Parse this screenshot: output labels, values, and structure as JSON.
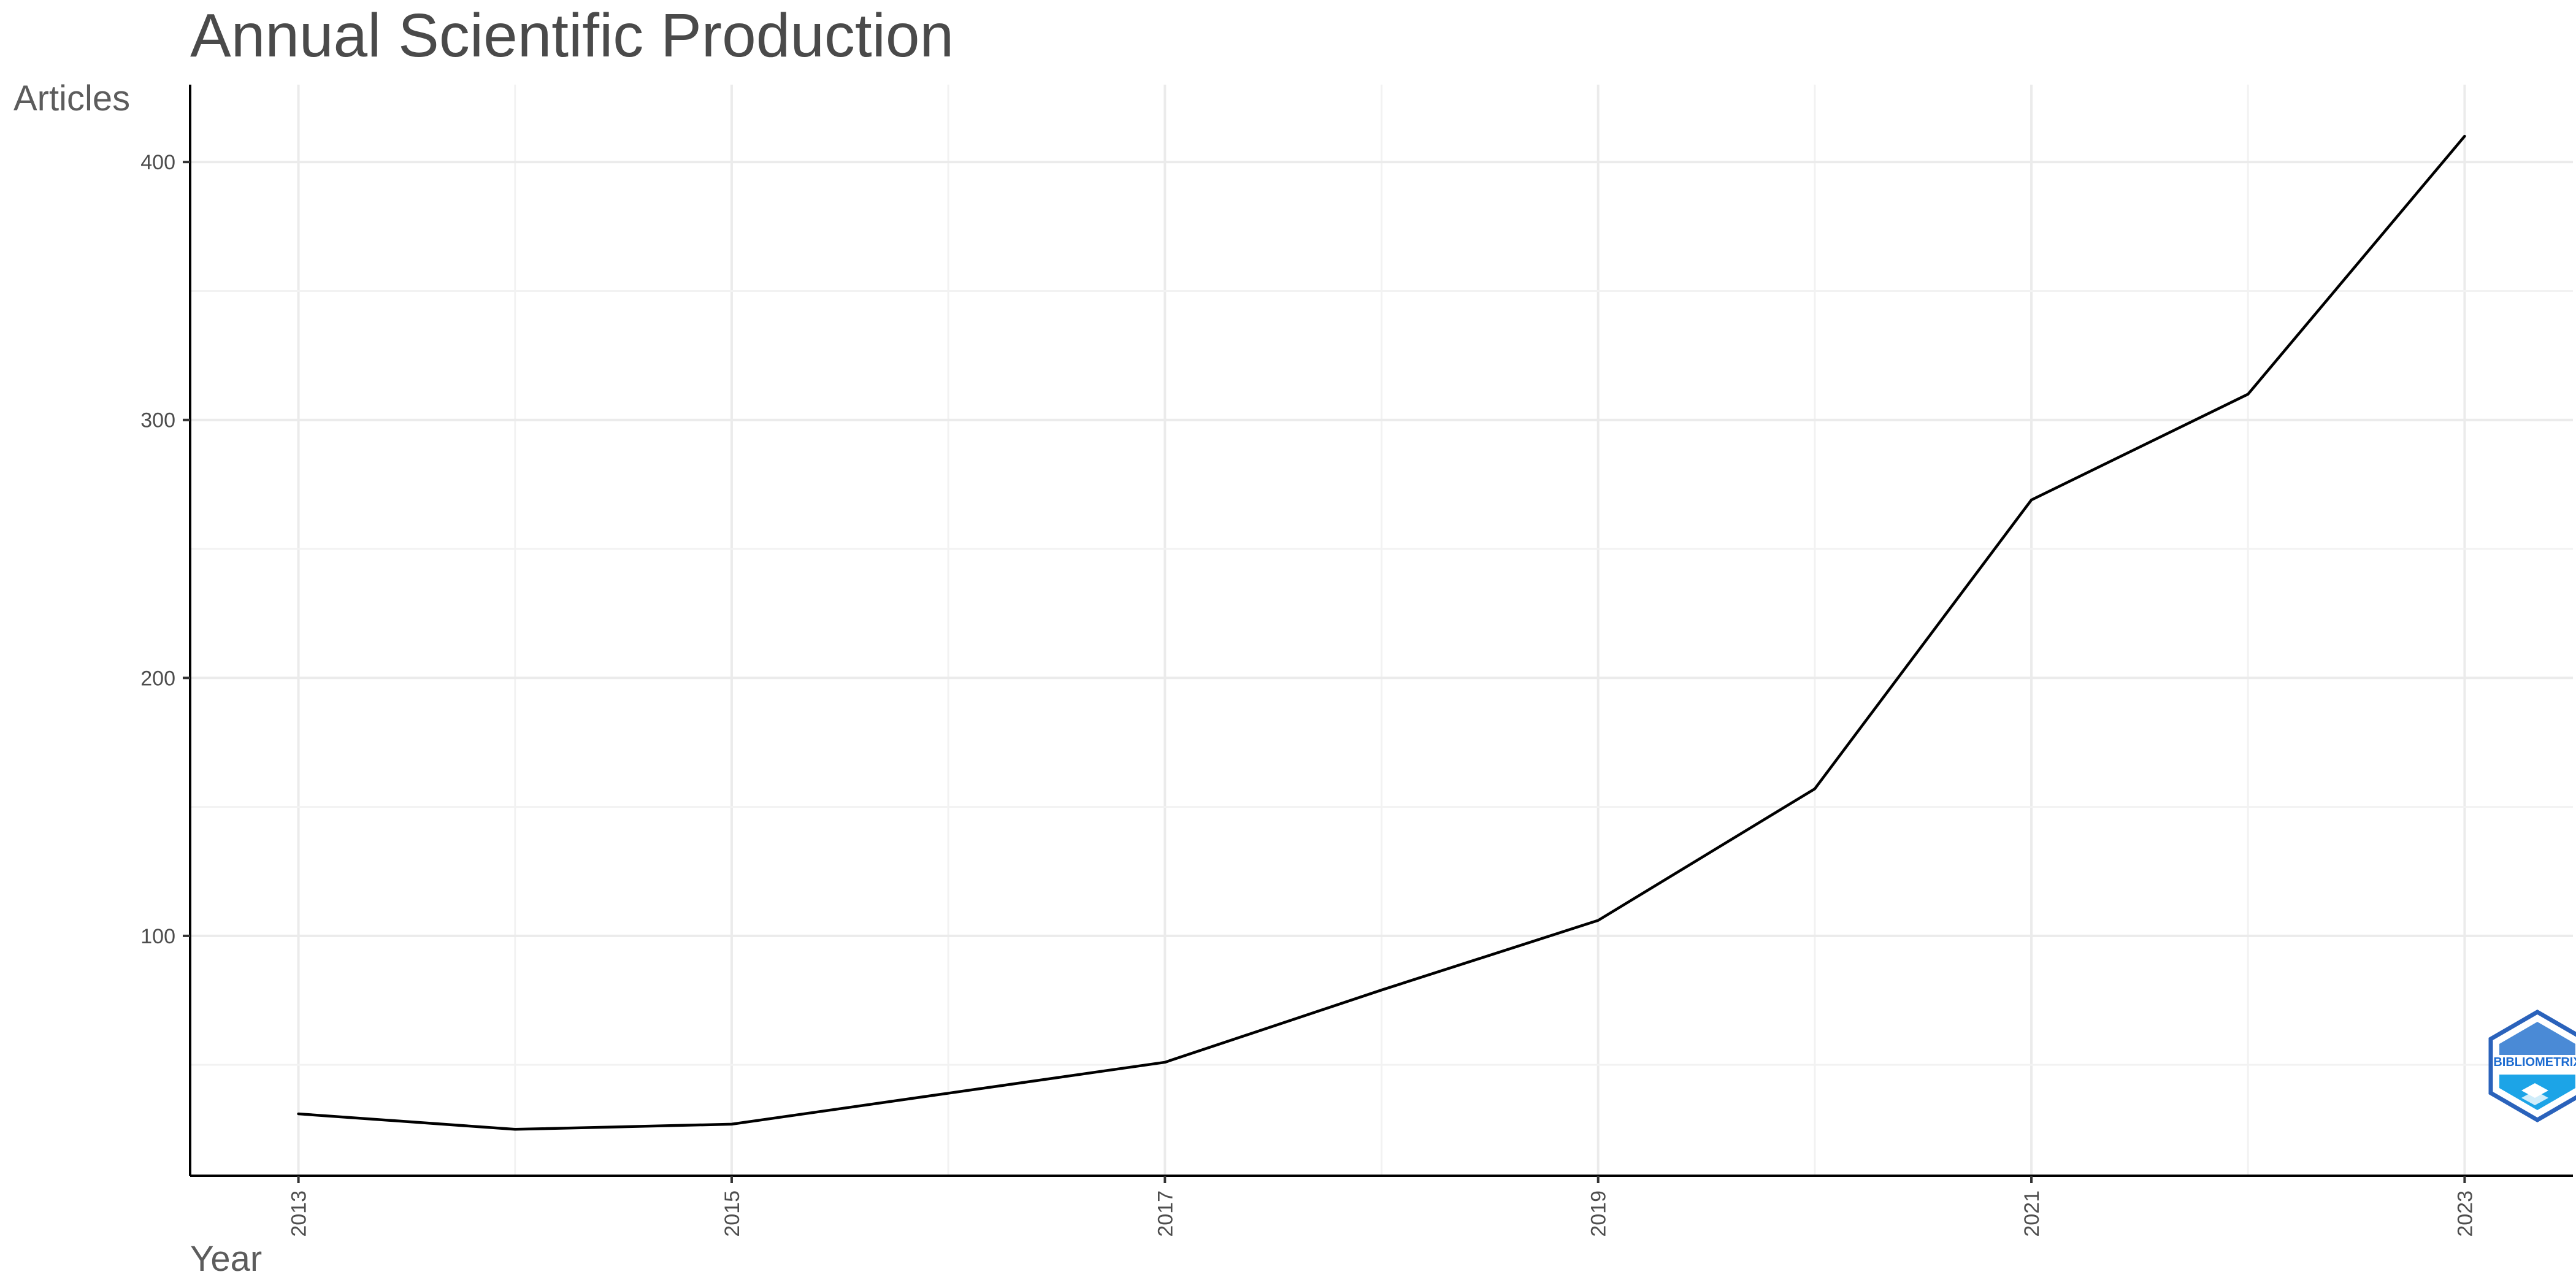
{
  "chart_data": {
    "type": "line",
    "title": "Annual Scientific Production",
    "xlabel": "Year",
    "ylabel": "Articles",
    "x": [
      2013,
      2014,
      2015,
      2016,
      2017,
      2018,
      2019,
      2020,
      2021,
      2022,
      2023
    ],
    "series": [
      {
        "values": [
          31,
          25,
          27,
          39,
          51,
          79,
          106,
          157,
          269,
          310,
          410
        ]
      }
    ],
    "x_ticks": [
      "2013",
      "2015",
      "2017",
      "2019",
      "2021",
      "2023"
    ],
    "y_ticks": [
      "100",
      "200",
      "300",
      "400"
    ],
    "xlim": [
      2012.5,
      2023.5
    ],
    "ylim": [
      7,
      430
    ],
    "grid": true,
    "legend": "none",
    "line_color": "#000000",
    "watermark": "BIBLIOMETRIX"
  }
}
